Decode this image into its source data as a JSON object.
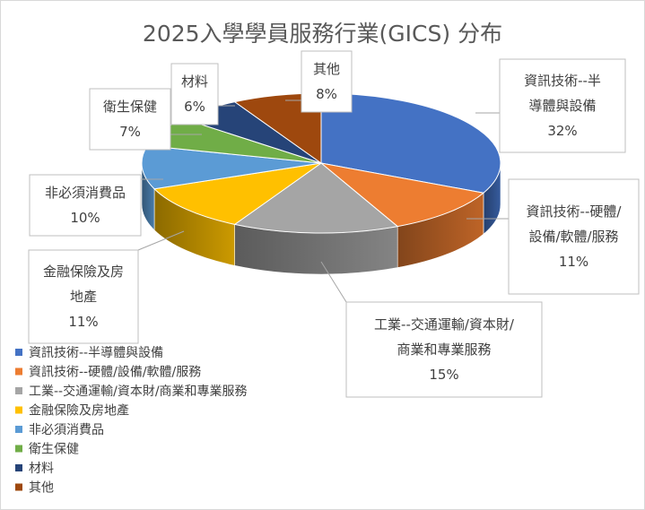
{
  "chart_data": {
    "type": "pie",
    "title": "2025入學學員服務行業(GICS) 分布",
    "categories": [
      "資訊技術--半導體與設備",
      "資訊技術--硬體/設備/軟體/服務",
      "工業--交通運輸/資本財/商業和專業服務",
      "金融保險及房地產",
      "非必須消費品",
      "衛生保健",
      "材料",
      "其他"
    ],
    "values": [
      32,
      11,
      15,
      11,
      10,
      7,
      6,
      8
    ],
    "value_labels": [
      "32%",
      "11%",
      "15%",
      "11%",
      "10%",
      "7%",
      "6%",
      "8%"
    ],
    "callout_lines": [
      [
        "資訊技術--半",
        "導體與設備"
      ],
      [
        "資訊技術--硬體/",
        "設備/軟體/服務"
      ],
      [
        "工業--交通運輸/資本財/",
        "商業和專業服務"
      ],
      [
        "金融保險及房",
        "地產"
      ],
      [
        "非必須消費品"
      ],
      [
        "衛生保健"
      ],
      [
        "材料"
      ],
      [
        "其他"
      ]
    ],
    "colors": [
      "#4472C4",
      "#ED7D31",
      "#A5A5A5",
      "#FFC000",
      "#5B9BD5",
      "#70AD47",
      "#264478",
      "#9E480E"
    ],
    "legend_position": "bottom-left",
    "style": "3d-pie"
  }
}
